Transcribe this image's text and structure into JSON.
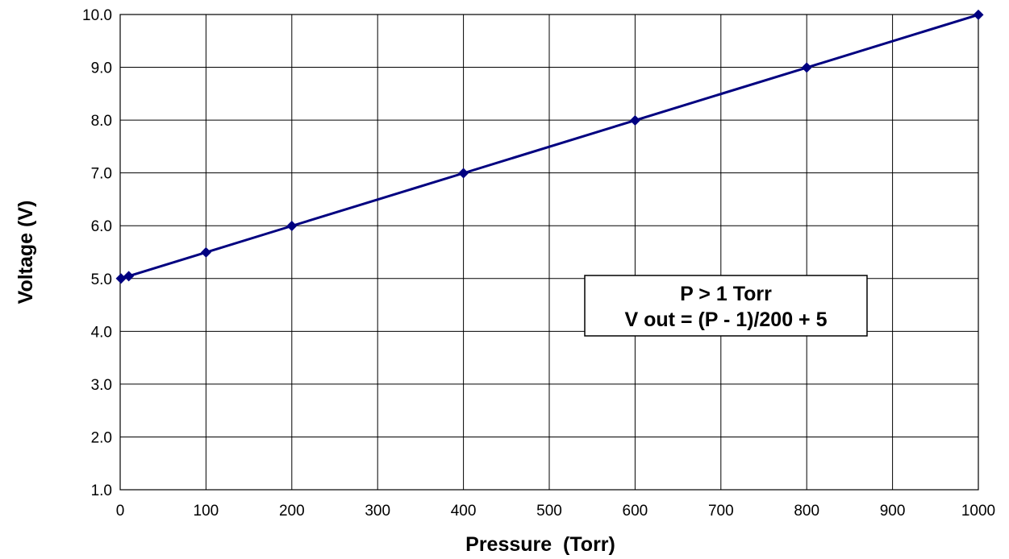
{
  "chart_data": {
    "type": "line",
    "xlabel": "Pressure  (Torr)",
    "ylabel": "Voltage (V)",
    "xlim": [
      0,
      1000
    ],
    "ylim": [
      1.0,
      10.0
    ],
    "x_ticks": [
      0,
      100,
      200,
      300,
      400,
      500,
      600,
      700,
      800,
      900,
      1000
    ],
    "y_ticks": [
      1.0,
      2.0,
      3.0,
      4.0,
      5.0,
      6.0,
      7.0,
      8.0,
      9.0,
      10.0
    ],
    "x_tick_labels": [
      "0",
      "100",
      "200",
      "300",
      "400",
      "500",
      "600",
      "700",
      "800",
      "900",
      "1000"
    ],
    "y_tick_labels": [
      "1.0",
      "2.0",
      "3.0",
      "4.0",
      "5.0",
      "6.0",
      "7.0",
      "8.0",
      "9.0",
      "10.0"
    ],
    "grid": true,
    "series": [
      {
        "color": "#000080",
        "marker": "diamond",
        "points": [
          {
            "x": 1,
            "y": 5.0
          },
          {
            "x": 10,
            "y": 5.045
          },
          {
            "x": 100,
            "y": 5.495
          },
          {
            "x": 200,
            "y": 5.995
          },
          {
            "x": 400,
            "y": 6.995
          },
          {
            "x": 600,
            "y": 7.995
          },
          {
            "x": 800,
            "y": 8.995
          },
          {
            "x": 1000,
            "y": 9.995
          }
        ]
      }
    ],
    "annotation": {
      "line1": "P > 1 Torr",
      "line2": "V out = (P - 1)/200 + 5"
    }
  }
}
